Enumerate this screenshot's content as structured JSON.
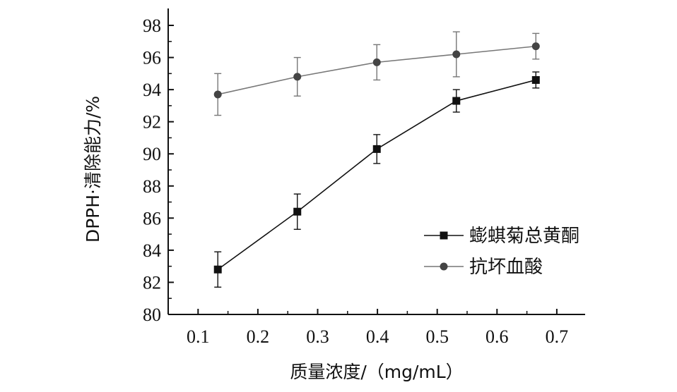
{
  "chart_data": {
    "type": "line",
    "title": "",
    "xlabel": "质量浓度/（mg/mL）",
    "ylabel": "DPPH·清除能力/%",
    "xlim": [
      0.05,
      0.75
    ],
    "ylim": [
      80,
      98
    ],
    "x_ticks": [
      "0.1",
      "0.2",
      "0.3",
      "0.4",
      "0.5",
      "0.6",
      "0.7"
    ],
    "x_tick_values": [
      0.1,
      0.2,
      0.3,
      0.4,
      0.5,
      0.6,
      0.7
    ],
    "y_ticks": [
      "80",
      "82",
      "84",
      "86",
      "88",
      "90",
      "92",
      "94",
      "96",
      "98"
    ],
    "y_tick_values": [
      80,
      82,
      84,
      86,
      88,
      90,
      92,
      94,
      96,
      98
    ],
    "grid": false,
    "legend_position": "bottom-right",
    "series": [
      {
        "name": "蟛蜞菊总黄酮",
        "marker": "square",
        "color": "#111111",
        "x": [
          0.133,
          0.266,
          0.399,
          0.532,
          0.665
        ],
        "y": [
          82.8,
          86.4,
          90.3,
          93.3,
          94.6
        ],
        "error": [
          1.1,
          1.1,
          0.9,
          0.7,
          0.5
        ]
      },
      {
        "name": "抗坏血酸",
        "marker": "circle",
        "color": "#777777",
        "x": [
          0.133,
          0.266,
          0.399,
          0.532,
          0.665
        ],
        "y": [
          93.7,
          94.8,
          95.7,
          96.2,
          96.7
        ],
        "error": [
          1.3,
          1.2,
          1.1,
          1.4,
          0.8
        ]
      }
    ]
  }
}
